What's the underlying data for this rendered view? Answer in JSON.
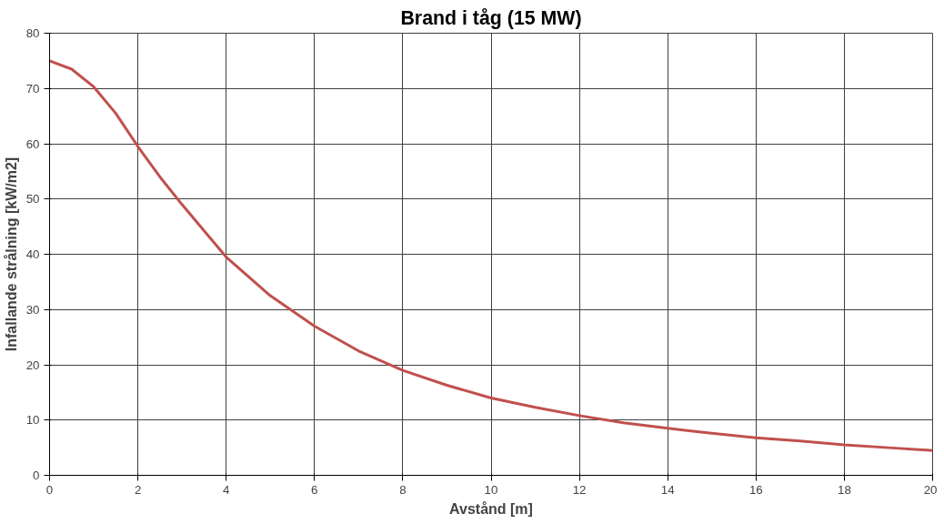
{
  "chart_data": {
    "type": "line",
    "title": "Brand i tåg (15 MW)",
    "xlabel": "Avstånd [m]",
    "ylabel": "Infallande strålning [kW/m2]",
    "x": [
      0,
      0.5,
      1,
      1.5,
      2,
      2.5,
      3,
      4,
      5,
      6,
      7,
      8,
      9,
      10,
      11,
      12,
      13,
      14,
      15,
      16,
      17,
      18,
      19,
      20
    ],
    "series": [
      {
        "color": "#c0504d",
        "values": [
          75,
          73.5,
          70.3,
          65.5,
          59.5,
          54,
          49,
          39.5,
          32.5,
          27,
          22.5,
          19,
          16.3,
          14,
          12.3,
          10.8,
          9.5,
          8.5,
          7.6,
          6.8,
          6.2,
          5.5,
          5,
          4.5
        ]
      }
    ],
    "xlim": [
      0,
      20
    ],
    "ylim": [
      0,
      80
    ],
    "xticks": [
      0,
      2,
      4,
      6,
      8,
      10,
      12,
      14,
      16,
      18,
      20
    ],
    "yticks": [
      0,
      10,
      20,
      30,
      40,
      50,
      60,
      70,
      80
    ],
    "grid": true,
    "marker": "none",
    "line_style": "solid"
  }
}
